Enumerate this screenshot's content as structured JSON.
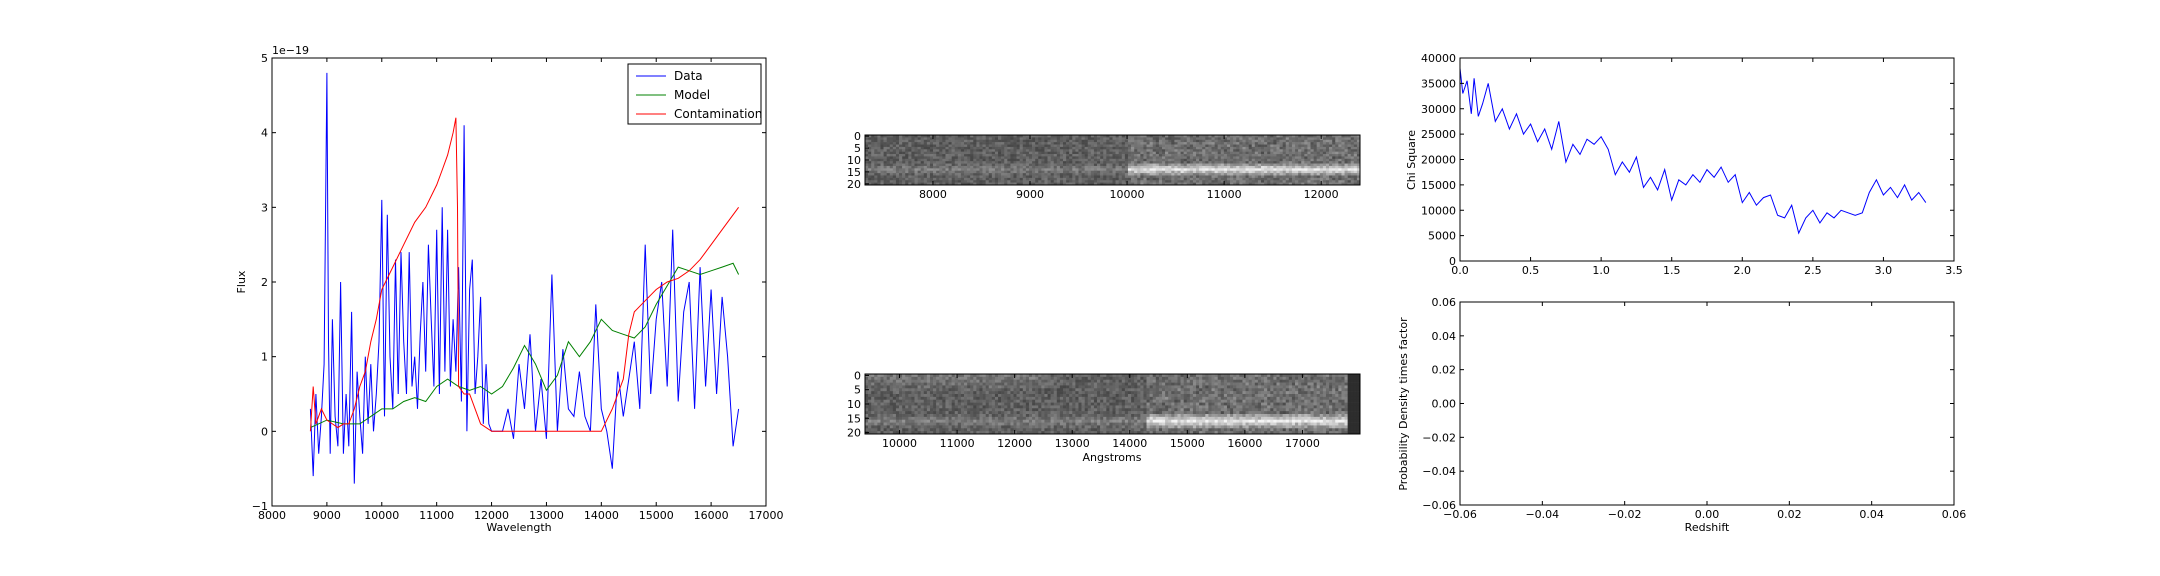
{
  "chart_data": [
    {
      "id": "spectrum",
      "type": "line",
      "xlabel": "Wavelength",
      "ylabel": "Flux",
      "offset_text": "1e−19",
      "xlim": [
        8000,
        17000
      ],
      "ylim": [
        -1,
        5
      ],
      "xticks": [
        8000,
        9000,
        10000,
        11000,
        12000,
        13000,
        14000,
        15000,
        16000,
        17000
      ],
      "yticks": [
        -1,
        0,
        1,
        2,
        3,
        4,
        5
      ],
      "legend_position": "top-right",
      "series": [
        {
          "name": "Data",
          "color": "#0000ff",
          "x": [
            8700,
            8750,
            8800,
            8850,
            8900,
            8950,
            9000,
            9030,
            9060,
            9100,
            9150,
            9200,
            9250,
            9300,
            9350,
            9400,
            9450,
            9500,
            9550,
            9600,
            9650,
            9700,
            9750,
            9800,
            9850,
            9900,
            9950,
            10000,
            10050,
            10100,
            10150,
            10200,
            10250,
            10300,
            10350,
            10400,
            10450,
            10500,
            10550,
            10600,
            10650,
            10700,
            10750,
            10800,
            10850,
            10900,
            10950,
            11000,
            11050,
            11100,
            11150,
            11200,
            11250,
            11300,
            11350,
            11400,
            11450,
            11500,
            11550,
            11600,
            11650,
            11700,
            11750,
            11800,
            11850,
            11900,
            11950,
            12000,
            12100,
            12200,
            12300,
            12400,
            12500,
            12600,
            12700,
            12800,
            12900,
            13000,
            13100,
            13200,
            13300,
            13400,
            13500,
            13600,
            13700,
            13800,
            13900,
            14000,
            14100,
            14200,
            14300,
            14400,
            14500,
            14600,
            14700,
            14800,
            14900,
            15000,
            15100,
            15200,
            15300,
            15400,
            15500,
            15600,
            15700,
            15800,
            15900,
            16000,
            16100,
            16200,
            16300,
            16400,
            16500
          ],
          "y": [
            0.3,
            -0.6,
            0.5,
            -0.3,
            0.2,
            0.9,
            4.8,
            1.2,
            -0.3,
            1.5,
            0.2,
            -0.2,
            2.0,
            -0.3,
            0.5,
            -0.2,
            1.6,
            -0.7,
            0.8,
            0.2,
            -0.3,
            1.0,
            0.1,
            0.9,
            0.0,
            0.5,
            1.2,
            3.1,
            0.2,
            2.9,
            1.0,
            0.3,
            2.3,
            0.5,
            2.4,
            1.2,
            0.5,
            2.4,
            0.6,
            1.0,
            0.3,
            1.3,
            2.0,
            0.8,
            2.5,
            1.5,
            0.6,
            2.7,
            0.5,
            3.0,
            0.8,
            2.7,
            0.6,
            1.5,
            0.8,
            2.2,
            0.4,
            4.1,
            0.0,
            1.9,
            2.3,
            0.5,
            1.0,
            1.8,
            0.1,
            0.9,
            0.1,
            0.0,
            0.0,
            0.0,
            0.3,
            -0.1,
            0.9,
            0.3,
            1.3,
            0.0,
            0.7,
            -0.1,
            2.1,
            0.0,
            1.1,
            0.3,
            0.2,
            0.8,
            0.2,
            0.0,
            1.7,
            0.3,
            0.0,
            -0.5,
            0.8,
            0.2,
            0.7,
            1.2,
            0.3,
            2.5,
            0.5,
            1.5,
            2.0,
            0.6,
            2.7,
            0.4,
            1.6,
            2.0,
            0.3,
            2.2,
            0.6,
            1.9,
            0.5,
            1.8,
            1.0,
            -0.2,
            0.3
          ]
        },
        {
          "name": "Model",
          "color": "#008000",
          "x": [
            8700,
            9000,
            9300,
            9600,
            9800,
            10000,
            10200,
            10400,
            10600,
            10800,
            11000,
            11200,
            11400,
            11600,
            11800,
            12000,
            12200,
            12400,
            12600,
            12800,
            13000,
            13200,
            13400,
            13600,
            13800,
            14000,
            14200,
            14400,
            14600,
            14800,
            15000,
            15200,
            15400,
            15600,
            15800,
            16000,
            16200,
            16400,
            16500
          ],
          "y": [
            0.05,
            0.15,
            0.1,
            0.1,
            0.2,
            0.3,
            0.3,
            0.4,
            0.45,
            0.4,
            0.6,
            0.7,
            0.6,
            0.55,
            0.6,
            0.5,
            0.6,
            0.85,
            1.15,
            0.9,
            0.55,
            0.75,
            1.2,
            1.0,
            1.2,
            1.5,
            1.35,
            1.3,
            1.25,
            1.4,
            1.7,
            1.95,
            2.2,
            2.15,
            2.1,
            2.15,
            2.2,
            2.25,
            2.1
          ]
        },
        {
          "name": "Contamination",
          "color": "#ff0000",
          "x": [
            8700,
            8750,
            8800,
            8900,
            9000,
            9100,
            9200,
            9300,
            9400,
            9500,
            9600,
            9700,
            9800,
            9900,
            10000,
            10200,
            10400,
            10600,
            10800,
            11000,
            11100,
            11200,
            11300,
            11350,
            11380,
            11400,
            11500,
            11600,
            11700,
            11800,
            11900,
            12000,
            12200,
            12500,
            12800,
            13200,
            13600,
            14000,
            14200,
            14400,
            14500,
            14600,
            14800,
            15000,
            15200,
            15400,
            15600,
            15800,
            16000,
            16200,
            16500
          ],
          "y": [
            0.0,
            0.6,
            0.1,
            0.3,
            0.15,
            0.1,
            0.05,
            0.1,
            0.1,
            0.3,
            0.6,
            0.8,
            1.2,
            1.5,
            1.9,
            2.2,
            2.5,
            2.8,
            3.0,
            3.3,
            3.5,
            3.7,
            4.0,
            4.2,
            3.0,
            0.6,
            0.5,
            0.5,
            0.3,
            0.1,
            0.05,
            0.0,
            0.0,
            0.0,
            0.0,
            0.0,
            0.0,
            0.0,
            0.3,
            0.7,
            1.3,
            1.6,
            1.75,
            1.9,
            2.0,
            2.05,
            2.15,
            2.3,
            2.5,
            2.7,
            3.0
          ]
        }
      ]
    },
    {
      "id": "spectrum-2d-upper",
      "type": "heatmap",
      "xlim": [
        7300,
        12400
      ],
      "xticks": [
        8000,
        9000,
        10000,
        11000,
        12000
      ],
      "yticks": [
        0,
        5,
        10,
        15,
        20
      ],
      "ylim": [
        21,
        0
      ],
      "colormap": "gray",
      "trace_row": 14,
      "trace_start": 10000
    },
    {
      "id": "spectrum-2d-lower",
      "type": "heatmap",
      "xlabel": "Angstroms",
      "xlim": [
        9400,
        18000
      ],
      "xticks": [
        10000,
        11000,
        12000,
        13000,
        14000,
        15000,
        16000,
        17000
      ],
      "yticks": [
        0,
        5,
        10,
        15,
        20
      ],
      "ylim": [
        21,
        0
      ],
      "colormap": "gray",
      "trace_row": 16,
      "trace_start": 14300,
      "trace_end": 17800
    },
    {
      "id": "chi-square",
      "type": "line",
      "ylabel": "Chi Square",
      "xlim": [
        0.0,
        3.5
      ],
      "ylim": [
        0,
        40000
      ],
      "xticks": [
        0.0,
        0.5,
        1.0,
        1.5,
        2.0,
        2.5,
        3.0,
        3.5
      ],
      "xtick_labels": [
        "0.0",
        "0.5",
        "1.0",
        "1.5",
        "2.0",
        "2.5",
        "3.0",
        "3.5"
      ],
      "yticks": [
        0,
        5000,
        10000,
        15000,
        20000,
        25000,
        30000,
        35000,
        40000
      ],
      "series": [
        {
          "color": "#0000ff",
          "x": [
            0.0,
            0.02,
            0.05,
            0.08,
            0.1,
            0.13,
            0.16,
            0.2,
            0.25,
            0.3,
            0.35,
            0.4,
            0.45,
            0.5,
            0.55,
            0.6,
            0.65,
            0.7,
            0.75,
            0.8,
            0.85,
            0.9,
            0.95,
            1.0,
            1.05,
            1.1,
            1.15,
            1.2,
            1.25,
            1.3,
            1.35,
            1.4,
            1.45,
            1.5,
            1.55,
            1.6,
            1.65,
            1.7,
            1.75,
            1.8,
            1.85,
            1.9,
            1.95,
            2.0,
            2.05,
            2.1,
            2.15,
            2.2,
            2.25,
            2.3,
            2.35,
            2.4,
            2.45,
            2.5,
            2.55,
            2.6,
            2.65,
            2.7,
            2.75,
            2.8,
            2.85,
            2.9,
            2.95,
            3.0,
            3.05,
            3.1,
            3.15,
            3.2,
            3.25,
            3.3
          ],
          "y": [
            38000,
            33000,
            35500,
            29000,
            36000,
            28500,
            31000,
            35000,
            27500,
            30000,
            26000,
            29000,
            25000,
            27000,
            23500,
            26000,
            22000,
            27500,
            19500,
            23000,
            21000,
            24000,
            23000,
            24500,
            22000,
            17000,
            19500,
            17500,
            20500,
            14500,
            16500,
            14000,
            18000,
            12000,
            16000,
            15000,
            17000,
            15500,
            18000,
            16500,
            18500,
            15500,
            17000,
            11500,
            13500,
            11000,
            12500,
            13000,
            9000,
            8500,
            11000,
            5500,
            8500,
            10000,
            7500,
            9500,
            8500,
            10000,
            9500,
            9000,
            9500,
            13500,
            16000,
            13000,
            14500,
            12500,
            15000,
            12000,
            13500,
            11500
          ]
        }
      ]
    },
    {
      "id": "probability-density",
      "type": "line",
      "xlabel": "Redshift",
      "ylabel": "Probability Density times factor",
      "xlim": [
        -0.06,
        0.06
      ],
      "ylim": [
        -0.06,
        0.06
      ],
      "xticks": [
        -0.06,
        -0.04,
        -0.02,
        0.0,
        0.02,
        0.04,
        0.06
      ],
      "xtick_labels": [
        "−0.06",
        "−0.04",
        "−0.02",
        "0.00",
        "0.02",
        "0.04",
        "0.06"
      ],
      "yticks": [
        -0.06,
        -0.04,
        -0.02,
        0.0,
        0.02,
        0.04,
        0.06
      ],
      "ytick_labels": [
        "−0.06",
        "−0.04",
        "−0.02",
        "0.00",
        "0.02",
        "0.04",
        "0.06"
      ],
      "series": []
    }
  ]
}
